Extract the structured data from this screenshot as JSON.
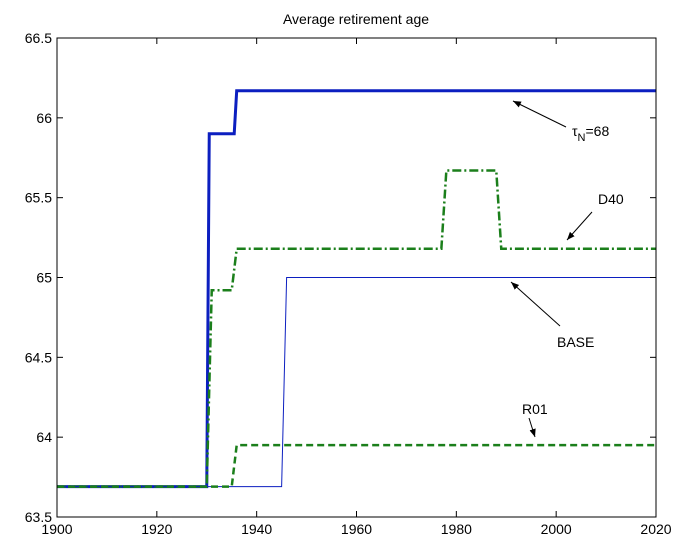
{
  "chart_data": {
    "type": "line",
    "title": "Average retirement age",
    "xlim": [
      1900,
      2020
    ],
    "xticks": [
      1900,
      1920,
      1940,
      1960,
      1980,
      2000,
      2020
    ],
    "ylim": [
      63.5,
      66.5
    ],
    "yticks": [
      63.5,
      64,
      64.5,
      65,
      65.5,
      66,
      66.5
    ],
    "grid": false,
    "series": [
      {
        "color": "#0c1fc0",
        "width": 3,
        "dash": "none",
        "x": [
          1900,
          1930,
          1930.5,
          1935.5,
          1936,
          2020
        ],
        "values": [
          63.69,
          63.69,
          65.9,
          65.9,
          66.17,
          66.17
        ]
      },
      {
        "color": "#1b7f1b",
        "width": 2.5,
        "dash": "9,3,2,3",
        "x": [
          1900,
          1930,
          1931,
          1935,
          1936,
          1977,
          1978,
          1988,
          1989,
          2020
        ],
        "values": [
          63.69,
          63.69,
          64.92,
          64.92,
          65.18,
          65.18,
          65.67,
          65.67,
          65.18,
          65.18
        ]
      },
      {
        "color": "#0c1fc0",
        "width": 1,
        "dash": "none",
        "x": [
          1900,
          1945,
          1946,
          2020
        ],
        "values": [
          63.69,
          63.69,
          65.0,
          65.0
        ]
      },
      {
        "color": "#1b7f1b",
        "width": 2.5,
        "dash": "7,4",
        "x": [
          1900,
          1935,
          1936,
          2020
        ],
        "values": [
          63.69,
          63.69,
          63.95,
          63.95
        ]
      }
    ],
    "annotations": [
      {
        "text": [
          "τ",
          "N",
          "=68"
        ]
      },
      {
        "text": [
          "D40"
        ]
      },
      {
        "text": [
          "BASE"
        ]
      },
      {
        "text": [
          "R01"
        ]
      }
    ]
  }
}
